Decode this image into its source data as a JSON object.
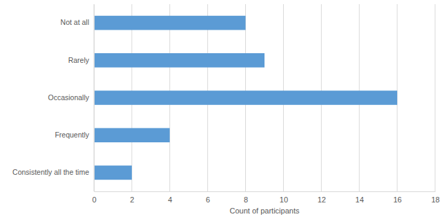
{
  "chart_data": {
    "type": "bar",
    "orientation": "horizontal",
    "categories": [
      "Not at all",
      "Rarely",
      "Occasionally",
      "Frequently",
      "Consistently all the time"
    ],
    "values": [
      8,
      9,
      16,
      4,
      2
    ],
    "color": "#5b9bd5",
    "x_label": "Count of participants",
    "xlim": [
      0,
      18
    ],
    "xticks": [
      0,
      2,
      4,
      6,
      8,
      10,
      12,
      14,
      16,
      18
    ],
    "grid": true
  }
}
